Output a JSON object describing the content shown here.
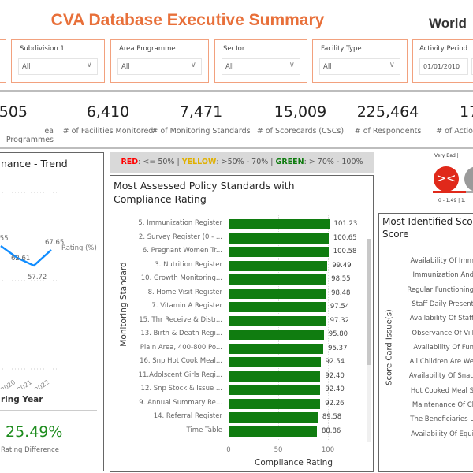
{
  "header": {
    "title": "CVA Database Executive Summary",
    "logo_text": "World"
  },
  "filters": [
    {
      "label": "Subdivision 1",
      "value": "All"
    },
    {
      "label": "Area Programme",
      "value": "All"
    },
    {
      "label": "Sector",
      "value": "All"
    },
    {
      "label": "Facility Type",
      "value": "All"
    },
    {
      "label": "Activity Period",
      "value": "01/01/2010"
    }
  ],
  "kpis": [
    {
      "value": "505",
      "label": "ea Programmes"
    },
    {
      "value": "6,410",
      "label": "# of Facilities Monitored"
    },
    {
      "value": "7,471",
      "label": "# of Monitoring Standards"
    },
    {
      "value": "15,009",
      "label": "# of Scorecards (CSCs)"
    },
    {
      "value": "225,464",
      "label": "# of Respondents"
    },
    {
      "value": "17",
      "label": "# of Actio"
    }
  ],
  "trend": {
    "title": "nance - Trend",
    "series_label": "Rating (%)",
    "xlabel": "ring Year",
    "points": [
      {
        "year": "",
        "label": ".55"
      },
      {
        "year": "2020",
        "value": 62.61,
        "label": "62.61"
      },
      {
        "year": "2021",
        "value": 57.72,
        "label": "57.72"
      },
      {
        "year": "2022",
        "value": 67.65,
        "label": "67.65"
      }
    ],
    "line_color": "#118DFF",
    "difference": "25.49%",
    "difference_label": "Rating Difference",
    "difference_color": "#1E8C1E"
  },
  "legend": {
    "red": "RED",
    "red_text": ": <= 50%",
    "sep1": " | ",
    "yellow": "YELLOW",
    "yellow_text": ": >50% - 70%",
    "sep2": " | ",
    "green": "GREEN",
    "green_text": ": > 70% - 100%",
    "colors": {
      "red": "#FF0000",
      "yellow": "#E0B000",
      "green": "#107C10"
    }
  },
  "chart_data": {
    "type": "bar",
    "title": "Most Assessed Policy Standards with Compliance Rating",
    "xlabel": "Compliance Rating",
    "ylabel": "Monitoring Standard",
    "xlim": [
      0,
      100
    ],
    "xticks": [
      "0",
      "50",
      "100"
    ],
    "categories": [
      "5. Immunization Register",
      "2. Survey Register (0 - ...",
      "6. Pregnant Women Tr...",
      "3. Nutrition Register",
      "10. Growth Monitoring...",
      "8. Home Visit Register",
      "7. Vitamin A Register",
      "15. Thr Receive & Distr...",
      "13. Birth & Death Regi...",
      "Plain Area, 400-800 Po...",
      "16. Snp Hot Cook Meal...",
      "11.Adolscent Girls Regi...",
      "12. Snp Stock & Issue ...",
      "9. Annual Summary Re...",
      "14. Referral Register",
      "Time Table"
    ],
    "values": [
      101.23,
      100.65,
      100.58,
      99.49,
      98.55,
      98.48,
      97.54,
      97.32,
      95.8,
      95.37,
      92.54,
      92.4,
      92.4,
      92.26,
      89.58,
      88.86
    ],
    "value_labels": [
      "101.23",
      "100.65",
      "100.58",
      "99.49",
      "98.55",
      "98.48",
      "97.54",
      "97.32",
      "95.80",
      "95.37",
      "92.54",
      "92.40",
      "92.40",
      "92.26",
      "89.58",
      "88.86"
    ],
    "bar_color": "#107C10"
  },
  "sentiment": {
    "label": "Very Bad |",
    "range": "0 - 1.49  | 1.",
    "face_color": "#E0291A"
  },
  "scorecard": {
    "title_line1": "Most Identified Sco",
    "title_line2": "Score",
    "ylabel": "Score Card Issue(s)",
    "items": [
      "Availability Of Imm",
      "Immunization And",
      "Regular Functioning",
      "Staff Daily Present",
      "Availability Of Staff",
      "Observance Of Vill",
      "Availability Of Fun",
      "All Children Are We",
      "Availability Of Snac",
      "Hot Cooked Meal S",
      "Maintenance Of Cl",
      "The Beneficiaries L",
      "Availability Of Equi"
    ]
  }
}
